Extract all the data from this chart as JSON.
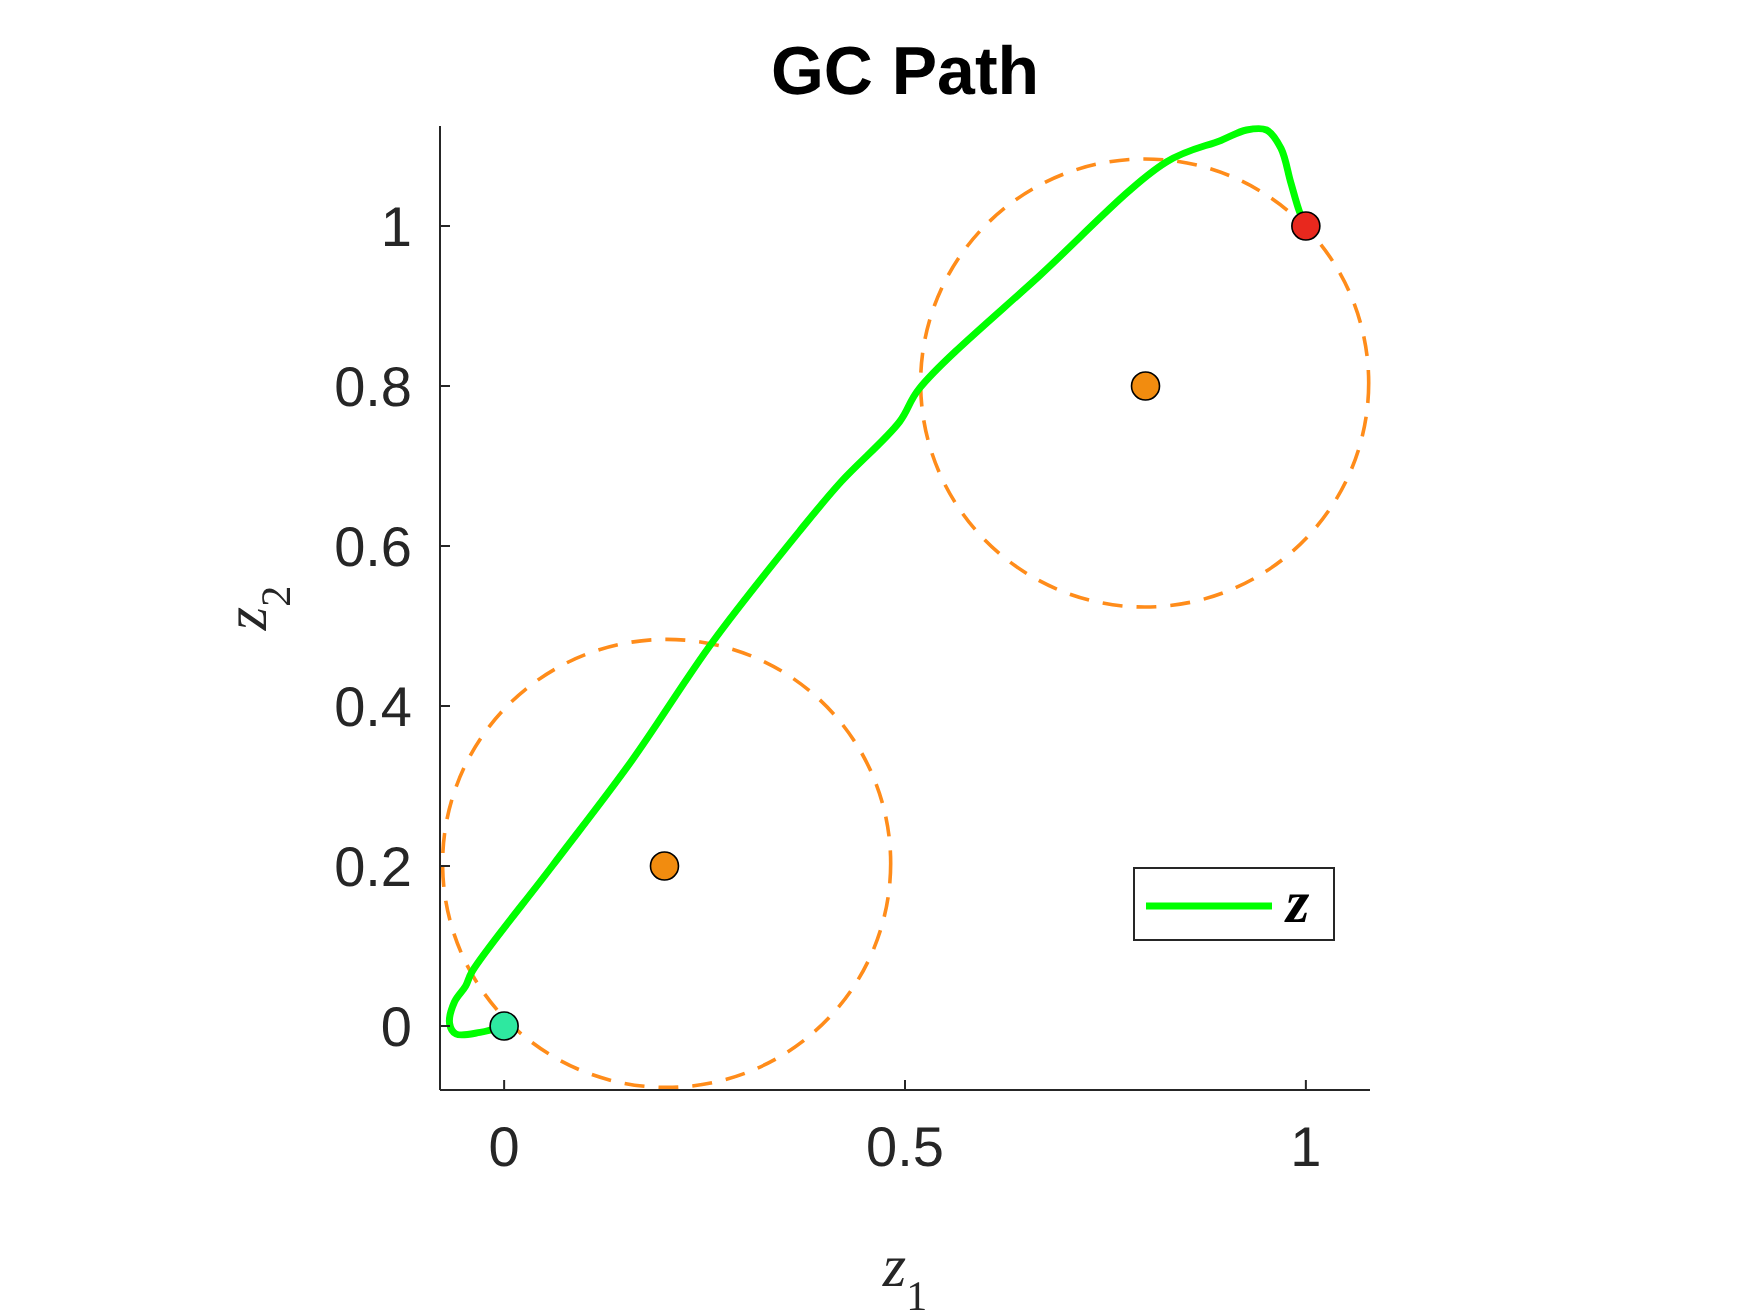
{
  "chart_data": {
    "type": "line",
    "title": "GC Path",
    "xlabel": "z$_{1}$",
    "ylabel": "z$_{2}$",
    "xlim": [
      -0.08,
      1.08
    ],
    "ylim": [
      -0.08,
      1.125
    ],
    "xticks": [
      0,
      0.5,
      1
    ],
    "yticks": [
      0,
      0.2,
      0.4,
      0.6,
      0.8,
      1
    ],
    "grid": false,
    "legend": "bottom right",
    "series": [
      {
        "name": "z",
        "color": "#00ff00",
        "line_style": "solid",
        "marker": "none",
        "x": [
          0,
          -0.03,
          -0.06,
          -0.068,
          -0.062,
          -0.048,
          -0.04,
          0.06,
          0.158,
          0.26,
          0.368,
          0.42,
          0.493,
          0.518,
          0.668,
          0.826,
          0.894,
          0.926,
          0.951,
          0.969,
          0.981,
          0.992,
          1
        ],
        "values": [
          0,
          -0.008,
          -0.01,
          0.003,
          0.03,
          0.05,
          0.068,
          0.2,
          0.33,
          0.48,
          0.618,
          0.68,
          0.755,
          0.797,
          0.938,
          1.08,
          1.107,
          1.12,
          1.12,
          1.097,
          1.055,
          1.018,
          1
        ]
      },
      {
        "type": "scatter",
        "color": "#2ee8a0",
        "marker": "circle",
        "x": [
          0
        ],
        "values": [
          0
        ]
      },
      {
        "type": "scatter",
        "color": "#e8281e",
        "marker": "circle",
        "x": [
          1
        ],
        "values": [
          1
        ]
      },
      {
        "type": "scatter",
        "color": "#f28c0f",
        "marker": "circle",
        "x": [
          0.2,
          0.8
        ],
        "values": [
          0.2,
          0.8
        ]
      }
    ]
  }
}
